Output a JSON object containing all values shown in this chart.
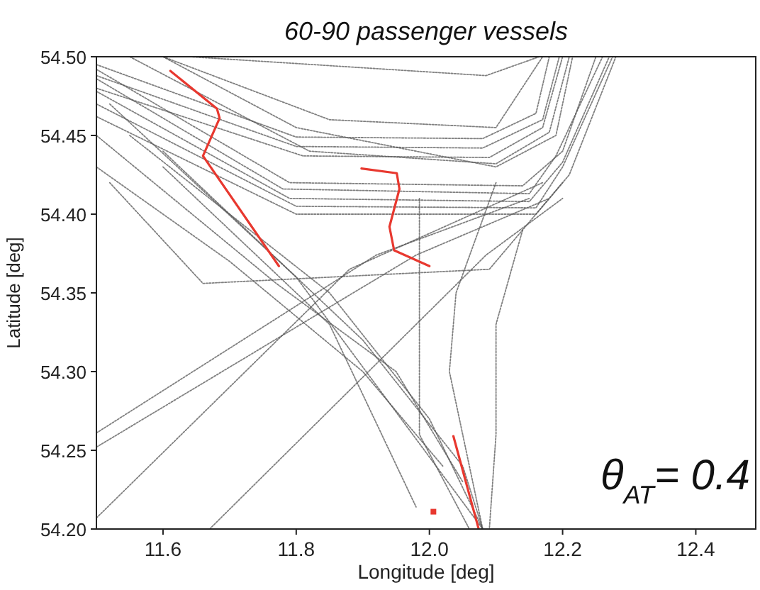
{
  "chart_data": {
    "type": "line",
    "title": "60-90 passenger vessels",
    "xlabel": "Longitude [deg]",
    "ylabel": "Latitude [deg]",
    "annotations": [
      "θ$_{AT}$= 0.4"
    ],
    "xlim": [
      11.5,
      12.49
    ],
    "ylim": [
      54.2,
      54.5
    ],
    "xticks": [
      11.6,
      11.8,
      {
        "value": 12,
        "label": "12.0"
      },
      12.2,
      12.4
    ],
    "yticks": [
      {
        "value": 54.2,
        "label": "54.20"
      },
      54.25,
      {
        "value": 54.3,
        "label": "54.30"
      },
      54.35,
      {
        "value": 54.4,
        "label": "54.40"
      },
      54.45,
      {
        "value": 54.5,
        "label": "54.50"
      }
    ],
    "series": [
      {
        "color": "#555555",
        "line_style": "dotted",
        "x": [
          11.5,
          11.8,
          12.08,
          12.16,
          12.18
        ],
        "values": [
          54.495,
          54.449,
          54.448,
          54.464,
          54.5
        ]
      },
      {
        "color": "#555555",
        "line_style": "dotted",
        "x": [
          11.5,
          11.8,
          12.08,
          12.17,
          12.195
        ],
        "values": [
          54.488,
          54.443,
          54.442,
          54.46,
          54.5
        ]
      },
      {
        "color": "#555555",
        "line_style": "dotted",
        "x": [
          11.5,
          11.81,
          12.09,
          12.17,
          12.2
        ],
        "values": [
          54.48,
          54.437,
          54.436,
          54.455,
          54.5
        ]
      },
      {
        "color": "#555555",
        "line_style": "dotted",
        "x": [
          11.55,
          11.82,
          12.1,
          12.18,
          12.21
        ],
        "values": [
          54.5,
          54.44,
          54.432,
          54.452,
          54.5
        ]
      },
      {
        "color": "#555555",
        "line_style": "dotted",
        "x": [
          11.6,
          11.8,
          12.1,
          12.19,
          12.215
        ],
        "values": [
          54.5,
          54.455,
          54.43,
          54.45,
          54.5
        ]
      },
      {
        "color": "#555555",
        "line_style": "dotted",
        "x": [
          11.64,
          12.085,
          12.165
        ],
        "values": [
          54.5,
          54.488,
          54.5
        ]
      },
      {
        "color": "#555555",
        "line_style": "dotted",
        "x": [
          11.6,
          11.85,
          12.1,
          12.17
        ],
        "values": [
          54.5,
          54.46,
          54.455,
          54.5
        ]
      },
      {
        "color": "#555555",
        "line_style": "dotted",
        "x": [
          11.5,
          11.78,
          12.15,
          12.19,
          12.26
        ],
        "values": [
          54.486,
          54.416,
          54.413,
          54.437,
          54.5
        ]
      },
      {
        "color": "#555555",
        "line_style": "dotted",
        "x": [
          11.5,
          11.79,
          12.15,
          12.2,
          12.27
        ],
        "values": [
          54.478,
          54.41,
          54.408,
          54.433,
          54.5
        ]
      },
      {
        "color": "#555555",
        "line_style": "dotted",
        "x": [
          11.5,
          11.8,
          12.16,
          12.2,
          12.275
        ],
        "values": [
          54.47,
          54.405,
          54.404,
          54.43,
          54.5
        ]
      },
      {
        "color": "#555555",
        "line_style": "dotted",
        "x": [
          11.5,
          11.8,
          12.16,
          12.21,
          12.28
        ],
        "values": [
          54.462,
          54.4,
          54.4,
          54.425,
          54.5
        ]
      },
      {
        "color": "#555555",
        "line_style": "dotted",
        "x": [
          11.5,
          11.79,
          12.14,
          12.2,
          12.25
        ],
        "values": [
          54.492,
          54.42,
          54.418,
          54.44,
          54.5
        ]
      },
      {
        "color": "#555555",
        "line_style": "dotted",
        "x": [
          11.5,
          11.98,
          12.18
        ],
        "values": [
          54.252,
          54.374,
          54.41
        ]
      },
      {
        "color": "#555555",
        "line_style": "dotted",
        "x": [
          11.5,
          11.92,
          12.15
        ],
        "values": [
          54.261,
          54.374,
          54.41
        ]
      },
      {
        "color": "#555555",
        "line_style": "dotted",
        "x": [
          11.5,
          11.88,
          12.17
        ],
        "values": [
          54.207,
          54.365,
          54.42
        ]
      },
      {
        "color": "#555555",
        "line_style": "dotted",
        "x": [
          11.67,
          12.085,
          12.2
        ],
        "values": [
          54.2,
          54.374,
          54.41
        ]
      },
      {
        "color": "#555555",
        "line_style": "dotted",
        "x": [
          11.52,
          11.8,
          12.08
        ],
        "values": [
          54.47,
          54.36,
          54.2
        ]
      },
      {
        "color": "#555555",
        "line_style": "dotted",
        "x": [
          11.55,
          11.85,
          12.0,
          12.08
        ],
        "values": [
          54.45,
          54.35,
          54.27,
          54.2
        ]
      },
      {
        "color": "#555555",
        "line_style": "dotted",
        "x": [
          11.6,
          11.9,
          12.05,
          12.08
        ],
        "values": [
          54.44,
          54.32,
          54.24,
          54.2
        ]
      },
      {
        "color": "#555555",
        "line_style": "dotted",
        "x": [
          11.6,
          11.85,
          11.98
        ],
        "values": [
          54.43,
          54.33,
          54.214
        ]
      },
      {
        "color": "#555555",
        "line_style": "dotted",
        "x": [
          12.14,
          12.1,
          12.1,
          12.09
        ],
        "values": [
          54.39,
          54.33,
          54.26,
          54.2
        ]
      },
      {
        "color": "#555555",
        "line_style": "dotted",
        "x": [
          12.08,
          12.03,
          12.04,
          12.1
        ],
        "values": [
          54.2,
          54.3,
          54.35,
          54.42
        ]
      },
      {
        "color": "#555555",
        "line_style": "dotted",
        "x": [
          11.985,
          11.985,
          12.06
        ],
        "values": [
          54.41,
          54.26,
          54.2
        ]
      },
      {
        "color": "#555555",
        "line_style": "dotted",
        "x": [
          11.5,
          11.77,
          11.95,
          12.05
        ],
        "values": [
          54.45,
          54.356,
          54.3,
          54.23
        ]
      },
      {
        "color": "#555555",
        "line_style": "dotted",
        "x": [
          11.52,
          11.66,
          12.09,
          12.2
        ],
        "values": [
          54.42,
          54.356,
          54.365,
          54.42
        ]
      },
      {
        "color": "#555555",
        "line_style": "dotted",
        "x": [
          11.5,
          11.7,
          11.9,
          12.02
        ],
        "values": [
          54.43,
          54.37,
          54.3,
          54.24
        ]
      },
      {
        "color": "#e8382f",
        "line_style": "solid",
        "x": [
          11.611,
          11.681,
          11.685,
          11.66,
          11.774
        ],
        "values": [
          54.491,
          54.467,
          54.461,
          54.437,
          54.367
        ]
      },
      {
        "color": "#e8382f",
        "line_style": "solid",
        "x": [
          11.898,
          11.951,
          11.955,
          11.94,
          11.947,
          12.0
        ],
        "values": [
          54.429,
          54.426,
          54.416,
          54.392,
          54.377,
          54.367
        ]
      },
      {
        "color": "#e8382f",
        "line_style": "solid",
        "x": [
          12.036,
          12.074
        ],
        "values": [
          54.259,
          54.2
        ]
      },
      {
        "type": "scatter",
        "marker": "square",
        "color": "#e8382f",
        "x": [
          12.006
        ],
        "values": [
          54.211
        ]
      }
    ]
  }
}
